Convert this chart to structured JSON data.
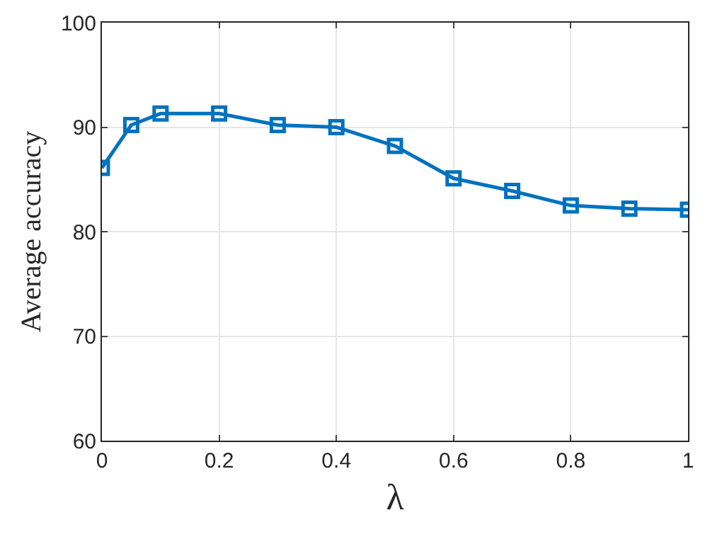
{
  "chart_data": {
    "type": "line",
    "xlabel": "λ",
    "ylabel": "Average accuracy",
    "x": [
      0,
      0.05,
      0.1,
      0.2,
      0.3,
      0.4,
      0.5,
      0.6,
      0.7,
      0.8,
      0.9,
      1
    ],
    "series": [
      {
        "color": "#0072bd",
        "values": [
          86.1,
          90.2,
          91.3,
          91.3,
          90.2,
          90.0,
          88.2,
          85.1,
          83.9,
          82.5,
          82.2,
          82.1
        ]
      }
    ],
    "xlim": [
      0,
      1
    ],
    "xticks": [
      0,
      0.2,
      0.4,
      0.6,
      0.8,
      1
    ],
    "ylim": [
      60,
      100
    ],
    "yticks": [
      60,
      70,
      80,
      90,
      100
    ],
    "grid": true,
    "marker": "square",
    "line_style": "solid",
    "legend": false
  }
}
